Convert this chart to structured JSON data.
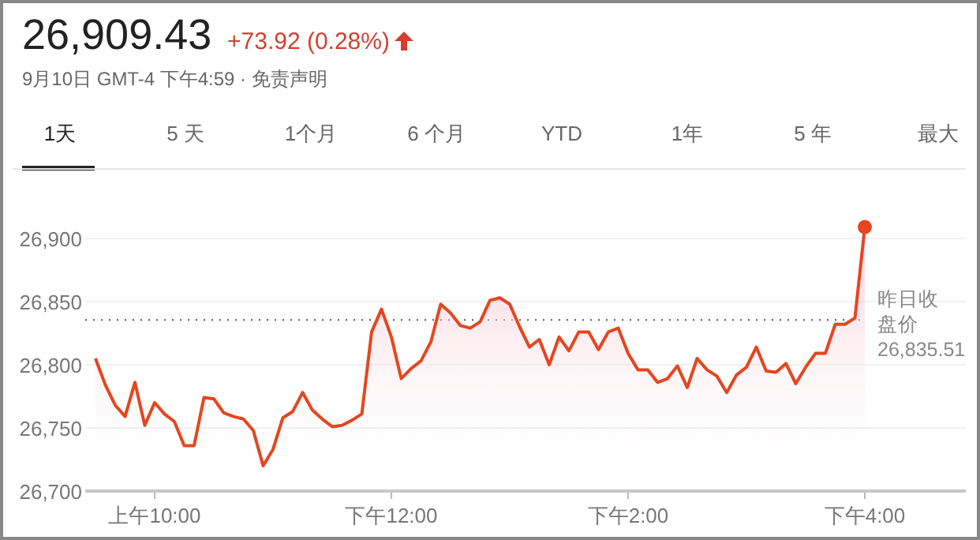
{
  "chart_data": {
    "type": "area",
    "title": "26,909.43",
    "subtitle": "+73.92 (0.28%)",
    "annotations": [
      "9月10日 GMT-4 下午4:59 · 免责声明",
      "1天",
      "5 天",
      "1个月",
      "6 个月",
      "YTD",
      "1年",
      "5 年",
      "最大"
    ],
    "categories": [
      null,
      null,
      null,
      null,
      null,
      null,
      "上午10:00",
      null,
      null,
      null,
      null,
      null,
      null,
      null,
      null,
      null,
      null,
      null,
      null,
      null,
      null,
      null,
      null,
      null,
      null,
      null,
      null,
      null,
      null,
      null,
      "下午12:00",
      null,
      null,
      null,
      null,
      null,
      null,
      null,
      null,
      null,
      null,
      null,
      null,
      null,
      null,
      null,
      null,
      null,
      null,
      null,
      null,
      null,
      null,
      null,
      "下午2:00",
      null,
      null,
      null,
      null,
      null,
      null,
      null,
      null,
      null,
      null,
      null,
      null,
      null,
      null,
      null,
      null,
      null,
      null,
      null,
      null,
      null,
      null,
      null,
      "下午4:00"
    ],
    "series": [
      {
        "color": "#e5461f",
        "values": [
          26805,
          26784,
          26768,
          26759,
          26786,
          26752,
          26770,
          26761,
          26755,
          26736,
          26736,
          26774,
          26773,
          26762,
          26759,
          26757,
          26748,
          26720,
          26733,
          26758,
          26763,
          26778,
          26764,
          26757,
          26751,
          26752,
          26756,
          26761,
          26826,
          26844,
          26822,
          26789,
          26797,
          26803,
          26818,
          26848,
          26841,
          26831,
          26829,
          26834,
          26851,
          26853,
          26848,
          26830,
          26814,
          26820,
          26800,
          26822,
          26811,
          26826,
          26826,
          26812,
          26826,
          26829,
          26809,
          26796,
          26796,
          26786,
          26789,
          26799,
          26782,
          26805,
          26796,
          26791,
          26778,
          26792,
          26798,
          26814,
          26795,
          26794,
          26801,
          26785,
          26798,
          26809,
          26809,
          26832,
          26832,
          26837,
          26909
        ]
      },
      {
        "type": "scatter",
        "color": "#e5461f",
        "values": [
          null,
          null,
          null,
          null,
          null,
          null,
          null,
          null,
          null,
          null,
          null,
          null,
          null,
          null,
          null,
          null,
          null,
          null,
          null,
          null,
          null,
          null,
          null,
          null,
          null,
          null,
          null,
          null,
          null,
          null,
          null,
          null,
          null,
          null,
          null,
          null,
          null,
          null,
          null,
          null,
          null,
          null,
          null,
          null,
          null,
          null,
          null,
          null,
          null,
          null,
          null,
          null,
          null,
          null,
          null,
          null,
          null,
          null,
          null,
          null,
          null,
          null,
          null,
          null,
          null,
          null,
          null,
          null,
          null,
          null,
          null,
          null,
          null,
          null,
          null,
          null,
          null,
          null,
          26909
        ]
      }
    ],
    "ylim": [
      26700,
      26955
    ],
    "yticks": [
      {
        "value": 26700,
        "label": "26,700"
      },
      {
        "value": 26750,
        "label": "26,750"
      },
      {
        "value": 26800,
        "label": "26,800"
      },
      {
        "value": 26850,
        "label": "26,850"
      },
      {
        "value": 26900,
        "label": "26,900"
      }
    ],
    "grid": "y",
    "ref_lines": [
      {
        "axis": "y",
        "value": 26835.51,
        "label": "昨日收盘价26,835.51",
        "color": "#555555",
        "line_style": "dotted"
      }
    ]
  }
}
